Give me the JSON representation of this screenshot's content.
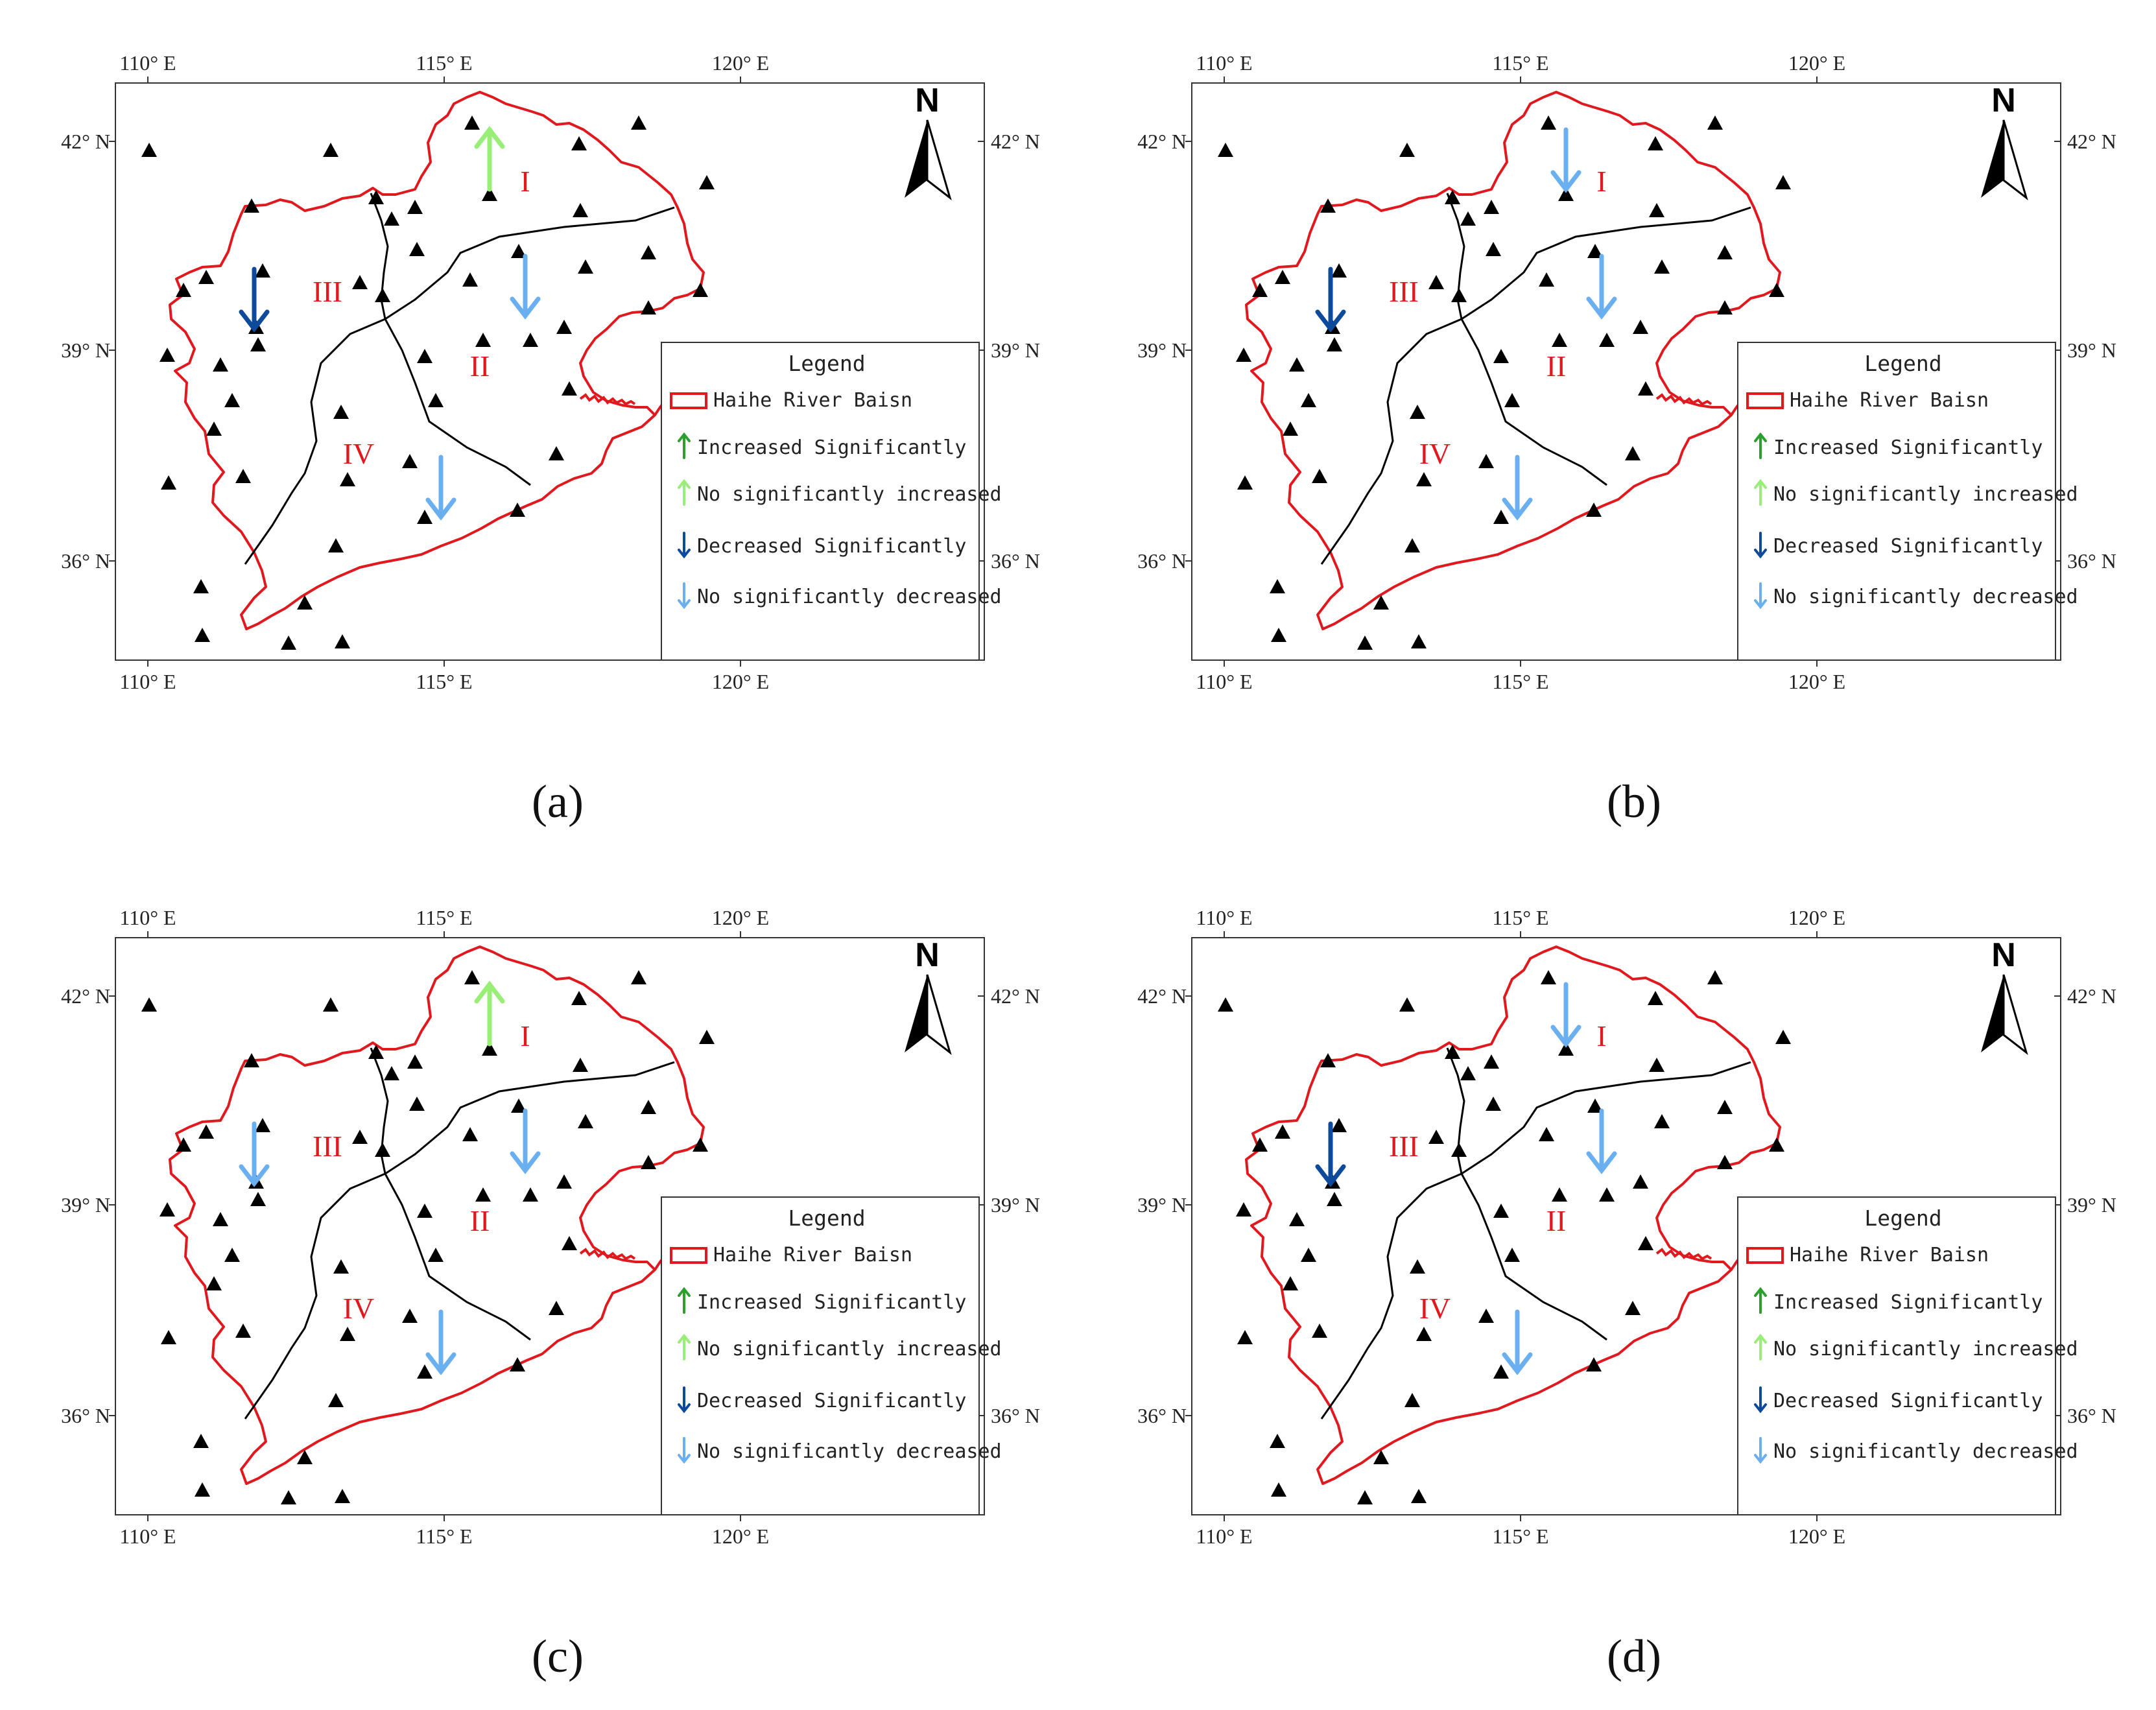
{
  "colors": {
    "increased_significantly": "#2ca02c",
    "no_significantly_increased": "#99ee77",
    "decreased_significantly": "#0d4a9c",
    "no_significantly_decreased": "#6aaff0",
    "basin_border": "#e0191f",
    "station": "#000000"
  },
  "axis_labels": {
    "lon": [
      "110° E",
      "115° E",
      "120° E"
    ],
    "lat": [
      "42° N",
      "39° N",
      "36° N"
    ]
  },
  "north_label": "N",
  "regions": [
    "I",
    "II",
    "III",
    "IV"
  ],
  "legend": {
    "title": "Legend",
    "items": [
      {
        "label": "Haihe River Baisn",
        "icon": "basin-outline-swatch"
      },
      {
        "label": "Increased Significantly",
        "icon": "arrow-up-icon",
        "color": "#2ca02c"
      },
      {
        "label": "No significantly increased",
        "icon": "arrow-up-icon",
        "color": "#99ee77"
      },
      {
        "label": "Decreased Significantly",
        "icon": "arrow-down-icon",
        "color": "#0d4a9c"
      },
      {
        "label": "No significantly decreased",
        "icon": "arrow-down-icon",
        "color": "#6aaff0"
      }
    ]
  },
  "panels": [
    {
      "caption": "(a)",
      "trends": {
        "I": "no_significantly_increased",
        "II": "no_significantly_decreased",
        "III": "decreased_significantly",
        "IV": "no_significantly_decreased"
      }
    },
    {
      "caption": "(b)",
      "trends": {
        "I": "no_significantly_decreased",
        "II": "no_significantly_decreased",
        "III": "decreased_significantly",
        "IV": "no_significantly_decreased"
      }
    },
    {
      "caption": "(c)",
      "trends": {
        "I": "no_significantly_increased",
        "II": "no_significantly_decreased",
        "III": "no_significantly_decreased",
        "IV": "no_significantly_decreased"
      }
    },
    {
      "caption": "(d)",
      "trends": {
        "I": "no_significantly_decreased",
        "II": "no_significantly_decreased",
        "III": "decreased_significantly",
        "IV": "no_significantly_decreased"
      }
    }
  ]
}
